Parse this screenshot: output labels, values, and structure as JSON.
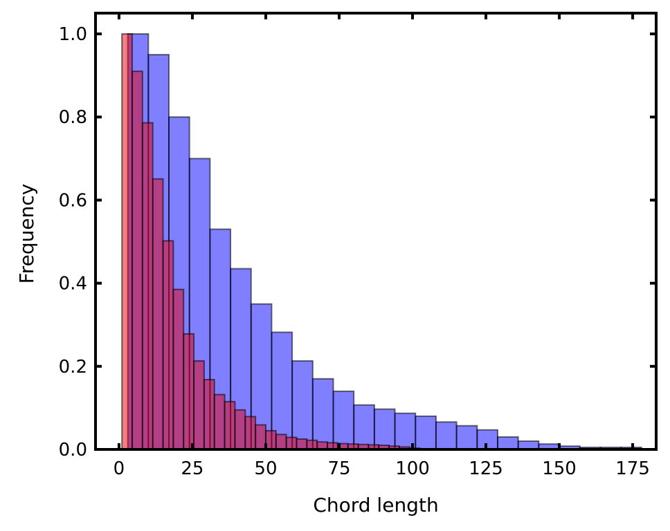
{
  "chart_data": {
    "type": "bar",
    "xlabel": "Chord length",
    "ylabel": "Frequency",
    "xlim": [
      -8,
      183
    ],
    "ylim": [
      0,
      1.05
    ],
    "xticks": [
      0,
      25,
      50,
      75,
      100,
      125,
      150,
      175
    ],
    "yticks": [
      0.0,
      0.2,
      0.4,
      0.6,
      0.8,
      1.0
    ],
    "xtick_labels": [
      "0",
      "25",
      "50",
      "75",
      "100",
      "125",
      "150",
      "175"
    ],
    "ytick_labels": [
      "0.0",
      "0.2",
      "0.4",
      "0.6",
      "0.8",
      "1.0"
    ],
    "grid": false,
    "series": [
      {
        "color": "#0000ff",
        "opacity": 0.5,
        "edge_color": "#000000",
        "bin_edges": [
          3,
          10,
          17,
          24,
          31,
          38,
          45,
          52,
          59,
          66,
          73,
          80,
          87,
          94,
          101,
          108,
          115,
          122,
          129,
          136,
          143,
          150,
          157,
          164,
          171,
          178
        ],
        "values": [
          1.0,
          0.95,
          0.8,
          0.7,
          0.53,
          0.435,
          0.35,
          0.282,
          0.213,
          0.17,
          0.14,
          0.107,
          0.097,
          0.087,
          0.08,
          0.066,
          0.057,
          0.047,
          0.03,
          0.02,
          0.013,
          0.008,
          0.005,
          0.005,
          0.005
        ]
      },
      {
        "color": "#e8000b",
        "opacity": 0.5,
        "edge_color": "#000000",
        "bin_edges": [
          1,
          4.5,
          8,
          11.5,
          15,
          18.5,
          22,
          25.5,
          29,
          32.5,
          36,
          39.5,
          43,
          46.5,
          50,
          53.5,
          57,
          60.5,
          64,
          67.5,
          71,
          74.5,
          78,
          81.5,
          85,
          88.5,
          92,
          95.5,
          99,
          102.5
        ],
        "values": [
          1.0,
          0.91,
          0.786,
          0.651,
          0.502,
          0.385,
          0.278,
          0.213,
          0.168,
          0.132,
          0.115,
          0.095,
          0.079,
          0.059,
          0.045,
          0.036,
          0.029,
          0.025,
          0.022,
          0.018,
          0.016,
          0.014,
          0.013,
          0.012,
          0.011,
          0.01,
          0.008,
          0.006,
          0.003
        ]
      }
    ]
  }
}
